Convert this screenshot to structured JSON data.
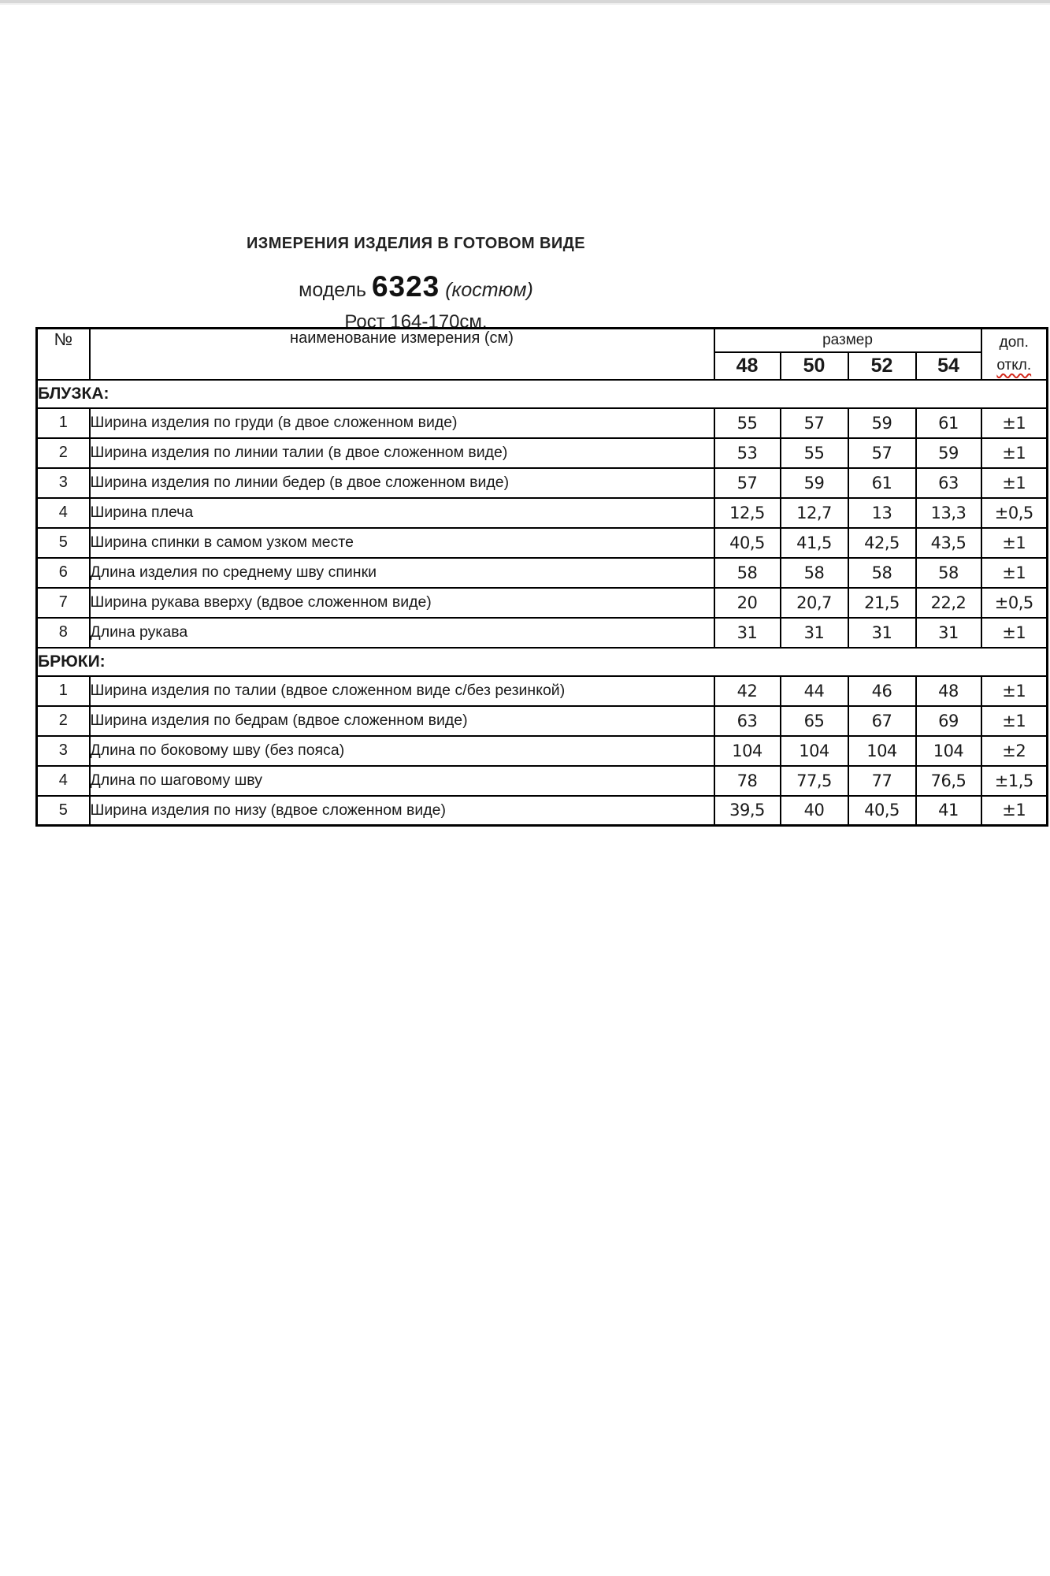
{
  "page": {
    "title": "ИЗМЕРЕНИЯ ИЗДЕЛИЯ В ГОТОВОМ ВИДЕ",
    "model_label": "модель",
    "model_number": "6323",
    "model_suffix": "(костюм)",
    "height_line": "Рост 164-170см."
  },
  "table": {
    "headers": {
      "num": "№",
      "name": "наименование измерения (см)",
      "size_group": "размер",
      "sizes": [
        "48",
        "50",
        "52",
        "54"
      ],
      "tolerance_line1": "доп.",
      "tolerance_line2": "откл."
    },
    "sections": [
      {
        "title": "БЛУЗКА:",
        "rows": [
          {
            "num": "1",
            "name": "Ширина изделия по груди (в двое сложенном виде)",
            "values": [
              "55",
              "57",
              "59",
              "61"
            ],
            "tolerance": "±1"
          },
          {
            "num": "2",
            "name": "Ширина изделия по линии талии (в двое сложенном виде)",
            "values": [
              "53",
              "55",
              "57",
              "59"
            ],
            "tolerance": "±1"
          },
          {
            "num": "3",
            "name": "Ширина изделия по линии бедер (в двое сложенном виде)",
            "values": [
              "57",
              "59",
              "61",
              "63"
            ],
            "tolerance": "±1"
          },
          {
            "num": "4",
            "name": "Ширина плеча",
            "values": [
              "12,5",
              "12,7",
              "13",
              "13,3"
            ],
            "tolerance": "±0,5"
          },
          {
            "num": "5",
            "name": "Ширина спинки в самом узком месте",
            "values": [
              "40,5",
              "41,5",
              "42,5",
              "43,5"
            ],
            "tolerance": "±1"
          },
          {
            "num": "6",
            "name": "Длина изделия по среднему шву спинки",
            "values": [
              "58",
              "58",
              "58",
              "58"
            ],
            "tolerance": "±1"
          },
          {
            "num": "7",
            "name": "Ширина рукава вверху (вдвое сложенном виде)",
            "values": [
              "20",
              "20,7",
              "21,5",
              "22,2"
            ],
            "tolerance": "±0,5"
          },
          {
            "num": "8",
            "name": "Длина рукава",
            "values": [
              "31",
              "31",
              "31",
              "31"
            ],
            "tolerance": "±1"
          }
        ]
      },
      {
        "title": "БРЮКИ:",
        "rows": [
          {
            "num": "1",
            "name": "Ширина изделия по талии (вдвое сложенном виде с/без резинкой)",
            "values": [
              "42",
              "44",
              "46",
              "48"
            ],
            "tolerance": "±1"
          },
          {
            "num": "2",
            "name": "Ширина изделия по бедрам (вдвое сложенном виде)",
            "values": [
              "63",
              "65",
              "67",
              "69"
            ],
            "tolerance": "±1"
          },
          {
            "num": "3",
            "name": "Длина по боковому шву (без пояса)",
            "values": [
              "104",
              "104",
              "104",
              "104"
            ],
            "tolerance": "±2"
          },
          {
            "num": "4",
            "name": "Длина по шаговому шву",
            "values": [
              "78",
              "77,5",
              "77",
              "76,5"
            ],
            "tolerance": "±1,5"
          },
          {
            "num": "5",
            "name": "Ширина изделия по низу (вдвое сложенном виде)",
            "values": [
              "39,5",
              "40",
              "40,5",
              "41"
            ],
            "tolerance": "±1"
          }
        ]
      }
    ]
  }
}
